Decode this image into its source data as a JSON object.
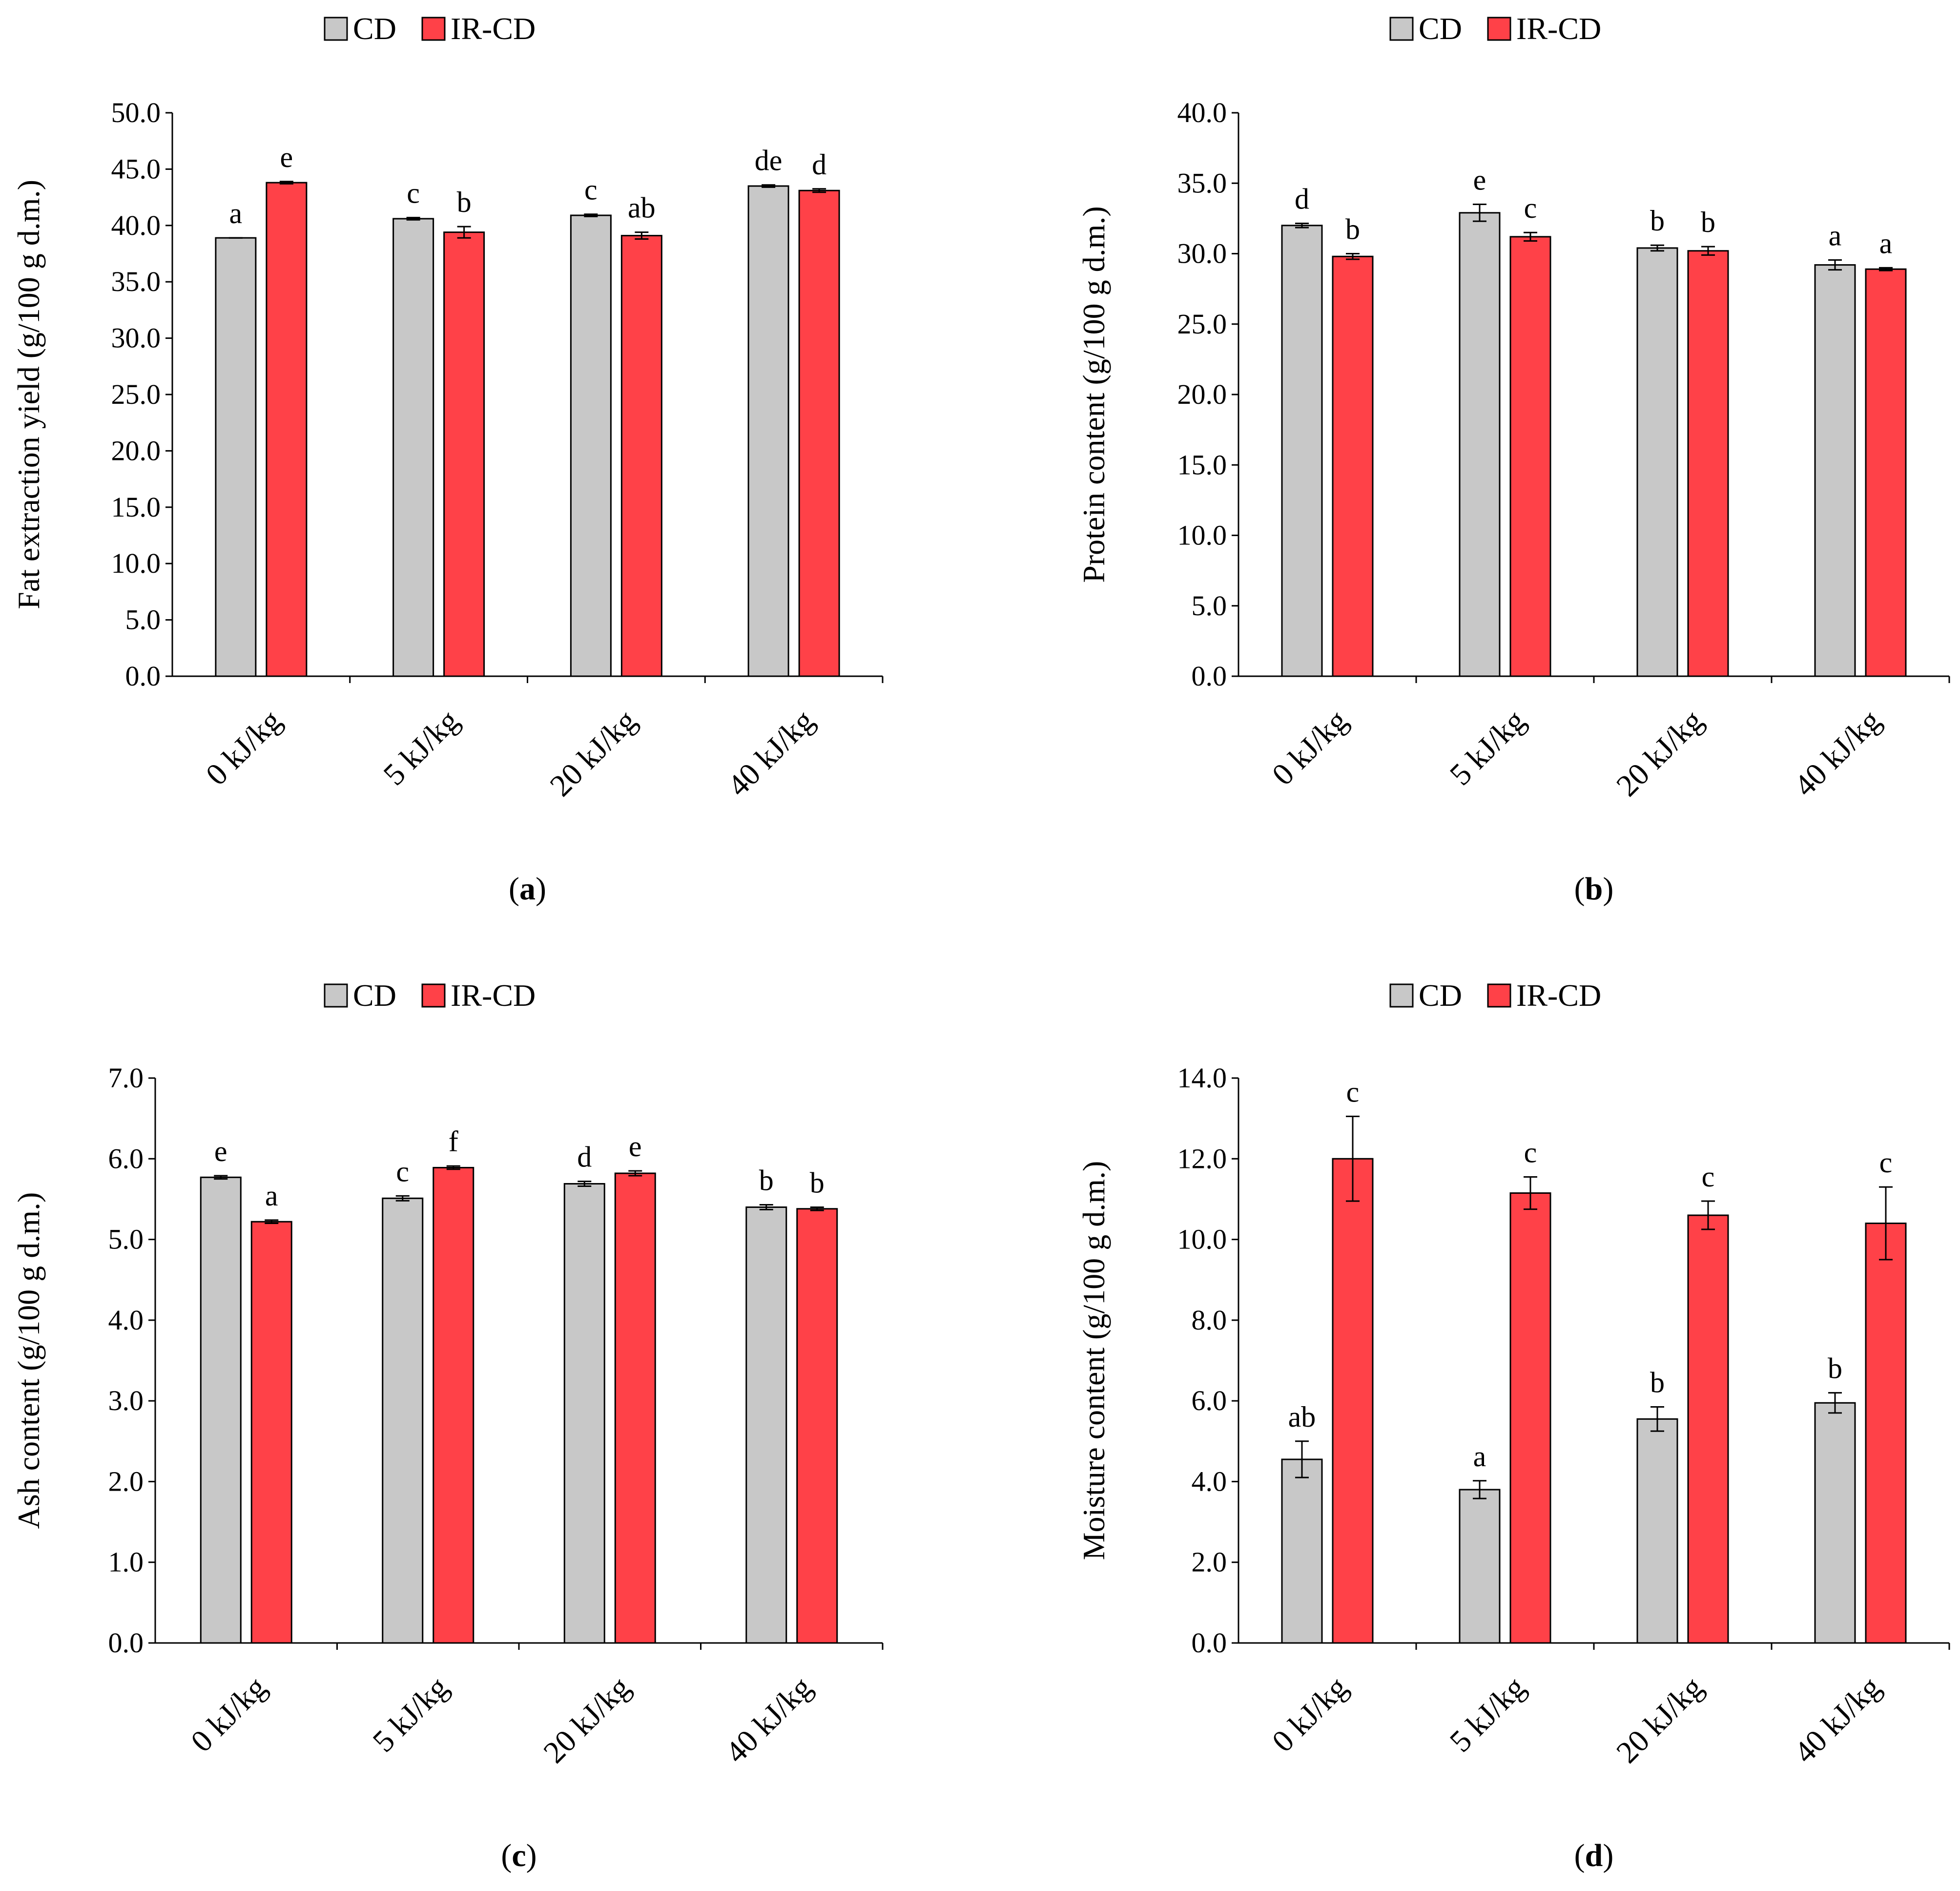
{
  "figure": {
    "panel_label_parens": [
      "(",
      ")"
    ]
  },
  "chart_data": [
    {
      "id": "a",
      "type": "bar",
      "panel_label": "a",
      "ylabel": "Fat extraction yield (g/100 g d.m.)",
      "xlabel": "",
      "ylim": [
        0,
        50
      ],
      "y_ticks": [
        "0.0",
        "5.0",
        "10.0",
        "15.0",
        "20.0",
        "25.0",
        "30.0",
        "35.0",
        "40.0",
        "45.0",
        "50.0"
      ],
      "categories": [
        "0 kJ/kg",
        "5 kJ/kg",
        "20 kJ/kg",
        "40 kJ/kg"
      ],
      "legend_position": "top-center",
      "grid": false,
      "series": [
        {
          "name": "CD",
          "color": "#c8c8c8",
          "values": [
            38.9,
            40.6,
            40.9,
            43.5
          ],
          "errors": [
            0,
            0.1,
            0.1,
            0.1
          ],
          "letters": [
            "a",
            "c",
            "c",
            "de"
          ]
        },
        {
          "name": "IR-CD",
          "color": "#ff4148",
          "values": [
            43.8,
            39.4,
            39.1,
            43.1
          ],
          "errors": [
            0.1,
            0.5,
            0.3,
            0.15
          ],
          "letters": [
            "e",
            "b",
            "ab",
            "d"
          ]
        }
      ]
    },
    {
      "id": "b",
      "type": "bar",
      "panel_label": "b",
      "ylabel": "Protein content (g/100 g d.m.)",
      "xlabel": "",
      "ylim": [
        0,
        40
      ],
      "y_ticks": [
        "0.0",
        "5.0",
        "10.0",
        "15.0",
        "20.0",
        "25.0",
        "30.0",
        "35.0",
        "40.0"
      ],
      "categories": [
        "0 kJ/kg",
        "5 kJ/kg",
        "20 kJ/kg",
        "40 kJ/kg"
      ],
      "legend_position": "top-center",
      "grid": false,
      "series": [
        {
          "name": "CD",
          "color": "#c8c8c8",
          "values": [
            32.0,
            32.9,
            30.4,
            29.2
          ],
          "errors": [
            0.15,
            0.6,
            0.2,
            0.35
          ],
          "letters": [
            "d",
            "e",
            "b",
            "a"
          ]
        },
        {
          "name": "IR-CD",
          "color": "#ff4148",
          "values": [
            29.8,
            31.2,
            30.2,
            28.9
          ],
          "errors": [
            0.2,
            0.3,
            0.3,
            0.1
          ],
          "letters": [
            "b",
            "c",
            "b",
            "a"
          ]
        }
      ]
    },
    {
      "id": "c",
      "type": "bar",
      "panel_label": "c",
      "ylabel": "Ash content (g/100 g d.m.)",
      "xlabel": "",
      "ylim": [
        0,
        7
      ],
      "y_ticks": [
        "0.0",
        "1.0",
        "2.0",
        "3.0",
        "4.0",
        "5.0",
        "6.0",
        "7.0"
      ],
      "categories": [
        "0 kJ/kg",
        "5 kJ/kg",
        "20 kJ/kg",
        "40 kJ/kg"
      ],
      "legend_position": "top-center",
      "grid": false,
      "series": [
        {
          "name": "CD",
          "color": "#c8c8c8",
          "values": [
            5.77,
            5.51,
            5.69,
            5.4
          ],
          "errors": [
            0.02,
            0.03,
            0.03,
            0.03
          ],
          "letters": [
            "e",
            "c",
            "d",
            "b"
          ]
        },
        {
          "name": "IR-CD",
          "color": "#ff4148",
          "values": [
            5.22,
            5.89,
            5.82,
            5.38
          ],
          "errors": [
            0.02,
            0.02,
            0.03,
            0.02
          ],
          "letters": [
            "a",
            "f",
            "e",
            "b"
          ]
        }
      ]
    },
    {
      "id": "d",
      "type": "bar",
      "panel_label": "d",
      "ylabel": "Moisture content (g/100 g d.m.)",
      "xlabel": "",
      "ylim": [
        0,
        14
      ],
      "y_ticks": [
        "0.0",
        "2.0",
        "4.0",
        "6.0",
        "8.0",
        "10.0",
        "12.0",
        "14.0"
      ],
      "categories": [
        "0 kJ/kg",
        "5 kJ/kg",
        "20 kJ/kg",
        "40 kJ/kg"
      ],
      "legend_position": "top-center",
      "grid": false,
      "series": [
        {
          "name": "CD",
          "color": "#c8c8c8",
          "values": [
            4.55,
            3.8,
            5.55,
            5.95
          ],
          "errors": [
            0.45,
            0.22,
            0.3,
            0.25
          ],
          "letters": [
            "ab",
            "a",
            "b",
            "b"
          ]
        },
        {
          "name": "IR-CD",
          "color": "#ff4148",
          "values": [
            12.0,
            11.15,
            10.6,
            10.4
          ],
          "errors": [
            1.05,
            0.4,
            0.35,
            0.9
          ],
          "letters": [
            "c",
            "c",
            "c",
            "c"
          ]
        }
      ]
    }
  ]
}
